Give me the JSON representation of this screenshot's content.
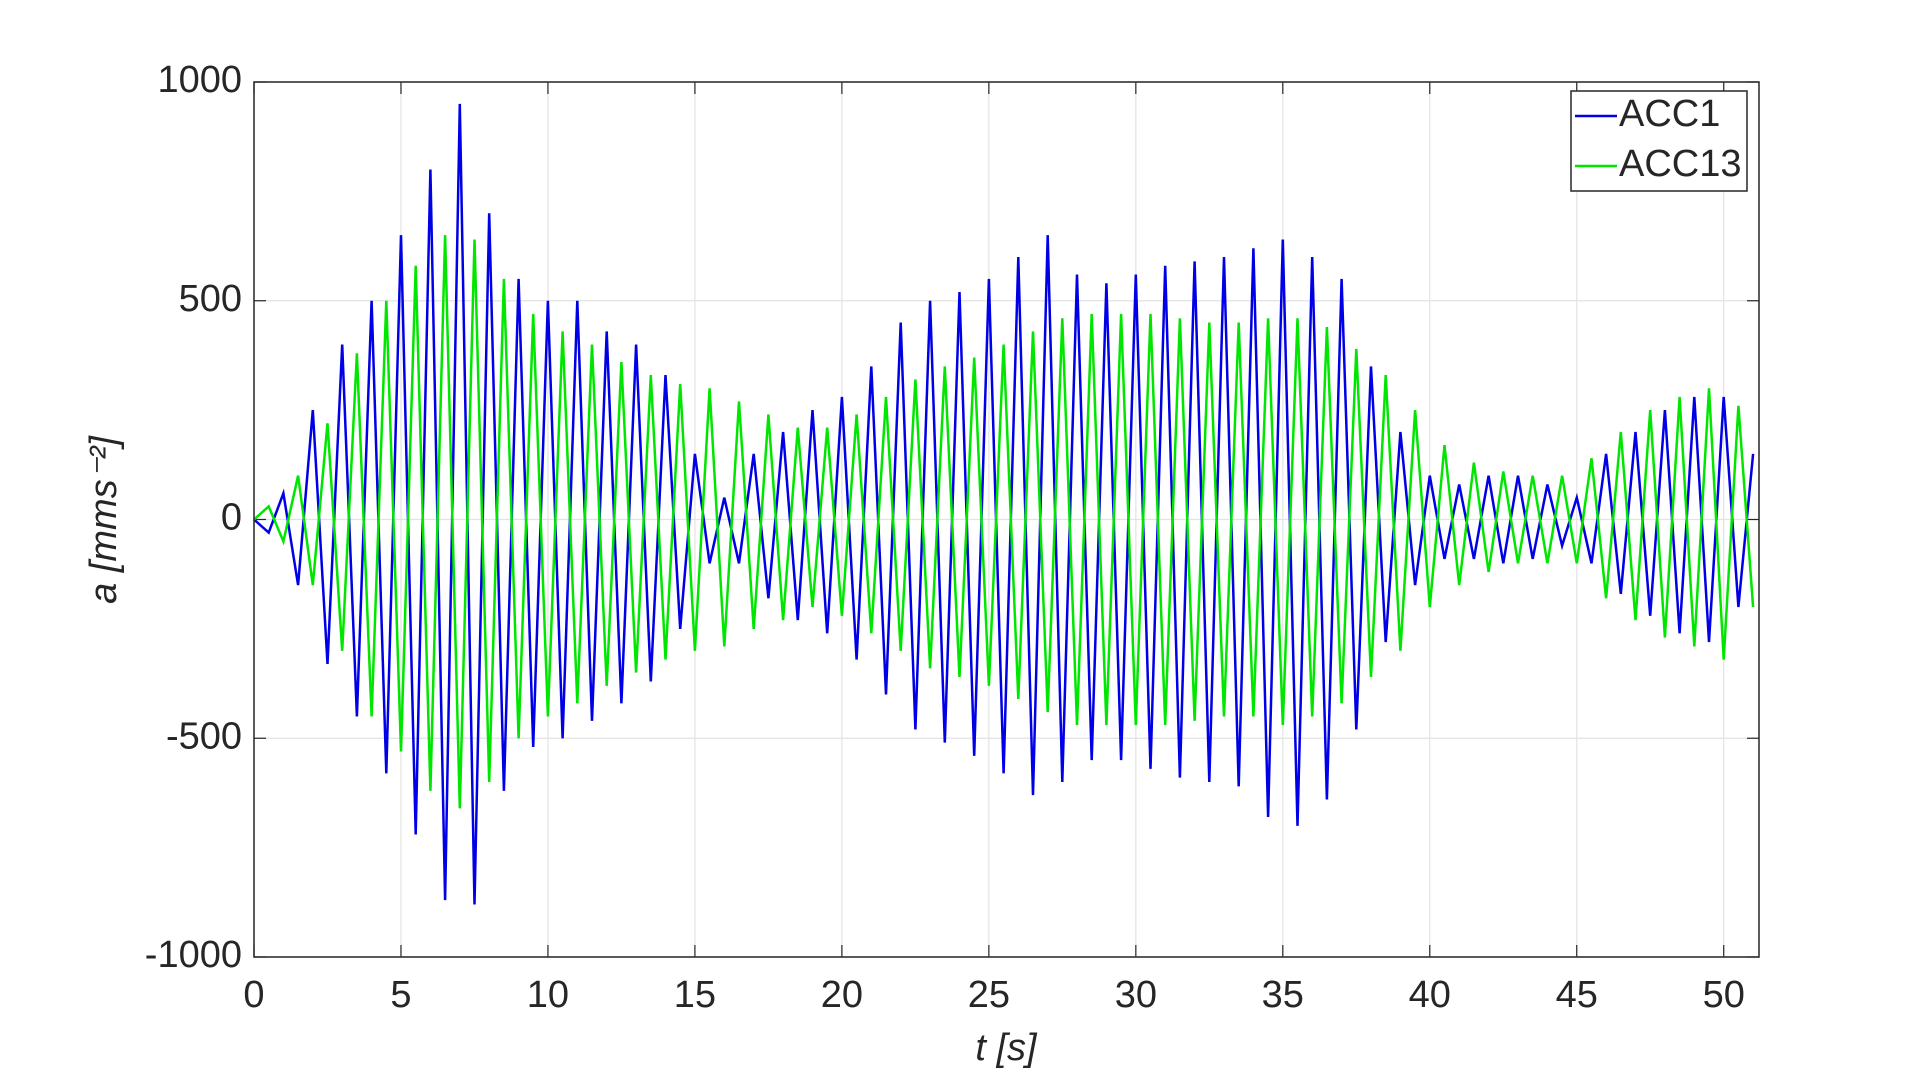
{
  "chart_data": {
    "type": "line",
    "xlabel": "t [s]",
    "ylabel": "a [mms⁻²]",
    "x": [
      0,
      0.5,
      1,
      1.5,
      2,
      2.5,
      3,
      3.5,
      4,
      4.5,
      5,
      5.5,
      6,
      6.5,
      7,
      7.5,
      8,
      8.5,
      9,
      9.5,
      10,
      10.5,
      11,
      11.5,
      12,
      12.5,
      13,
      13.5,
      14,
      14.5,
      15,
      15.5,
      16,
      16.5,
      17,
      17.5,
      18,
      18.5,
      19,
      19.5,
      20,
      20.5,
      21,
      21.5,
      22,
      22.5,
      23,
      23.5,
      24,
      24.5,
      25,
      25.5,
      26,
      26.5,
      27,
      27.5,
      28,
      28.5,
      29,
      29.5,
      30,
      30.5,
      31,
      31.5,
      32,
      32.5,
      33,
      33.5,
      34,
      34.5,
      35,
      35.5,
      36,
      36.5,
      37,
      37.5,
      38,
      38.5,
      39,
      39.5,
      40,
      40.5,
      41,
      41.5,
      42,
      42.5,
      43,
      43.5,
      44,
      44.5,
      45,
      45.5,
      46,
      46.5,
      47,
      47.5,
      48,
      48.5,
      49,
      49.5,
      50,
      50.5,
      51
    ],
    "series": [
      {
        "name": "ACC1",
        "color": "#0000e6",
        "values": [
          0,
          -30,
          60,
          -150,
          250,
          -330,
          400,
          -450,
          500,
          -580,
          650,
          -720,
          800,
          -870,
          950,
          -880,
          700,
          -620,
          550,
          -520,
          500,
          -500,
          500,
          -460,
          430,
          -420,
          400,
          -370,
          330,
          -250,
          150,
          -100,
          50,
          -100,
          150,
          -180,
          200,
          -230,
          250,
          -260,
          280,
          -320,
          350,
          -400,
          450,
          -480,
          500,
          -510,
          520,
          -540,
          550,
          -580,
          600,
          -630,
          650,
          -600,
          560,
          -550,
          540,
          -550,
          560,
          -570,
          580,
          -590,
          590,
          -600,
          600,
          -610,
          620,
          -680,
          640,
          -700,
          600,
          -640,
          550,
          -480,
          350,
          -280,
          200,
          -150,
          100,
          -90,
          80,
          -90,
          100,
          -100,
          100,
          -90,
          80,
          -60,
          50,
          -100,
          150,
          -170,
          200,
          -220,
          250,
          -260,
          280,
          -280,
          280,
          -200,
          150
        ]
      },
      {
        "name": "ACC13",
        "color": "#00e600",
        "values": [
          0,
          30,
          -50,
          100,
          -150,
          220,
          -300,
          380,
          -450,
          500,
          -530,
          580,
          -620,
          650,
          -660,
          640,
          -600,
          550,
          -500,
          470,
          -450,
          430,
          -420,
          400,
          -380,
          360,
          -350,
          330,
          -320,
          310,
          -300,
          300,
          -290,
          270,
          -250,
          240,
          -230,
          210,
          -200,
          210,
          -220,
          240,
          -260,
          280,
          -300,
          320,
          -340,
          350,
          -360,
          370,
          -380,
          400,
          -410,
          430,
          -440,
          460,
          -470,
          470,
          -470,
          470,
          -470,
          470,
          -470,
          460,
          -460,
          450,
          -450,
          450,
          -450,
          460,
          -470,
          460,
          -450,
          440,
          -420,
          390,
          -360,
          330,
          -300,
          250,
          -200,
          170,
          -150,
          130,
          -120,
          110,
          -100,
          100,
          -100,
          100,
          -100,
          140,
          -180,
          200,
          -230,
          250,
          -270,
          280,
          -290,
          300,
          -320,
          260,
          -200
        ]
      }
    ],
    "xlim": [
      0,
      51.2
    ],
    "ylim": [
      -1000,
      1000
    ],
    "xticks": [
      0,
      5,
      10,
      15,
      20,
      25,
      30,
      35,
      40,
      45,
      50
    ],
    "yticks": [
      -1000,
      -500,
      0,
      500,
      1000
    ],
    "grid": true,
    "legend": "upper right"
  }
}
